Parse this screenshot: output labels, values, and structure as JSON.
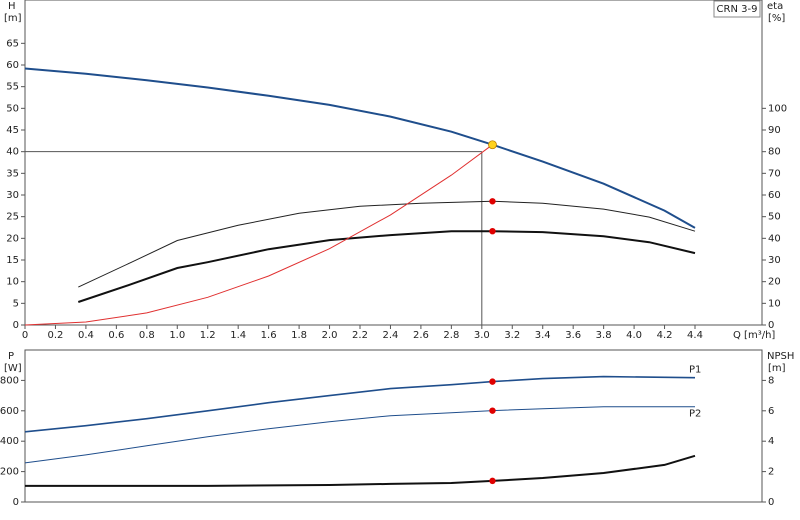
{
  "chart_data": [
    {
      "type": "line",
      "legend_text": "CRN 3-9",
      "ylabel": "H",
      "yunit": "[m]",
      "y2label": "eta",
      "y2unit": "[%]",
      "xlabel": "Q [m³/h]",
      "xlim": [
        0,
        4.84
      ],
      "ylim": [
        0,
        75
      ],
      "y2lim": [
        0,
        150
      ],
      "xticks": [
        0,
        0.2,
        0.4,
        0.6,
        0.8,
        {
          "value": 1.0,
          "label": "1.0"
        },
        1.2,
        1.4,
        1.6,
        1.8,
        {
          "value": 2.0,
          "label": "2.0"
        },
        2.2,
        2.4,
        2.6,
        2.8,
        {
          "value": 3.0,
          "label": "3.0"
        },
        3.2,
        3.4,
        3.6,
        3.8,
        {
          "value": 4.0,
          "label": "4.0"
        },
        4.2,
        4.4
      ],
      "yticks": [
        0,
        5,
        10,
        15,
        20,
        25,
        30,
        35,
        40,
        45,
        50,
        55,
        60,
        65
      ],
      "y2ticks": [
        0,
        10,
        20,
        30,
        40,
        50,
        60,
        70,
        80,
        90,
        100
      ],
      "reference": {
        "x": 3.0,
        "y": 40,
        "color": "#555555"
      },
      "series": [
        {
          "color": "#1f4e8c",
          "line_width": 2,
          "x": [
            0,
            0.4,
            0.8,
            1.2,
            1.6,
            2.0,
            2.4,
            2.8,
            3.07,
            3.4,
            3.8,
            4.2,
            4.4
          ],
          "values": [
            59.2,
            58,
            56.5,
            54.8,
            52.9,
            50.8,
            48.1,
            44.6,
            41.6,
            37.7,
            32.6,
            26.4,
            22.4
          ]
        },
        {
          "color": "#222222",
          "line_width": 1,
          "axis": "y2",
          "x": [
            0.35,
            0.7,
            1.0,
            1.4,
            1.8,
            2.2,
            2.6,
            3.07,
            3.4,
            3.8,
            4.1,
            4.4
          ],
          "values": [
            17.5,
            29,
            39,
            46,
            51.6,
            54.8,
            56.2,
            57.1,
            56.2,
            53.5,
            49.8,
            43.3
          ]
        },
        {
          "color": "#111111",
          "line_width": 2,
          "axis": "y2",
          "x": [
            0.35,
            0.7,
            1.0,
            1.2,
            1.6,
            2.0,
            2.4,
            2.8,
            3.07,
            3.4,
            3.8,
            4.1,
            4.4
          ],
          "values": [
            10.6,
            18.9,
            26.3,
            29,
            35,
            39.2,
            41.5,
            43.3,
            43.3,
            42.9,
            41,
            38.2,
            33.2
          ]
        },
        {
          "color": "#e03030",
          "line_width": 1,
          "x": [
            0,
            0.4,
            0.8,
            1.2,
            1.6,
            2.0,
            2.4,
            2.8,
            3.07
          ],
          "values": [
            0,
            0.7,
            2.8,
            6.4,
            11.3,
            17.6,
            25.4,
            34.6,
            41.6
          ]
        }
      ],
      "markers": [
        {
          "x": 3.07,
          "y": 41.6,
          "color": "#ffd21f"
        },
        {
          "x": 3.07,
          "y": 57.1,
          "axis": "y2",
          "color": "#e00000"
        },
        {
          "x": 3.07,
          "y": 43.3,
          "axis": "y2",
          "color": "#e00000"
        }
      ]
    },
    {
      "type": "line",
      "ylabel": "P",
      "yunit": "[W]",
      "y2label": "NPSH",
      "y2unit": "[m]",
      "xlim": [
        0,
        4.84
      ],
      "ylim": [
        0,
        1000
      ],
      "y2lim": [
        0,
        10
      ],
      "yticks": [
        0,
        200,
        400,
        600,
        800
      ],
      "y2ticks": [
        0,
        2,
        4,
        6,
        8
      ],
      "series": [
        {
          "name": "P1",
          "color": "#1f4e8c",
          "line_width": 1.6,
          "x": [
            0,
            0.4,
            0.8,
            1.2,
            1.6,
            2.0,
            2.4,
            2.8,
            3.07,
            3.4,
            3.8,
            4.4
          ],
          "values": [
            462,
            502,
            548,
            600,
            653,
            700,
            746,
            772,
            792,
            812,
            825,
            818
          ]
        },
        {
          "name": "P2",
          "color": "#1f4e8c",
          "line_width": 1,
          "x": [
            0,
            0.4,
            0.8,
            1.2,
            1.6,
            2.0,
            2.4,
            2.8,
            3.07,
            3.4,
            3.8,
            4.4
          ],
          "values": [
            257,
            310,
            370,
            429,
            482,
            528,
            568,
            587,
            601,
            614,
            627,
            627
          ]
        },
        {
          "color": "#111111",
          "line_width": 2,
          "axis": "y2",
          "x": [
            0,
            1.2,
            2.0,
            2.4,
            2.8,
            3.07,
            3.4,
            3.8,
            4.2,
            4.4
          ],
          "values": [
            1.06,
            1.06,
            1.12,
            1.19,
            1.25,
            1.39,
            1.58,
            1.91,
            2.44,
            3.04
          ]
        }
      ],
      "markers": [
        {
          "x": 3.07,
          "y": 792,
          "color": "#e00000"
        },
        {
          "x": 3.07,
          "y": 601,
          "color": "#e00000"
        },
        {
          "x": 3.07,
          "y": 1.39,
          "axis": "y2",
          "color": "#e00000"
        }
      ]
    }
  ]
}
